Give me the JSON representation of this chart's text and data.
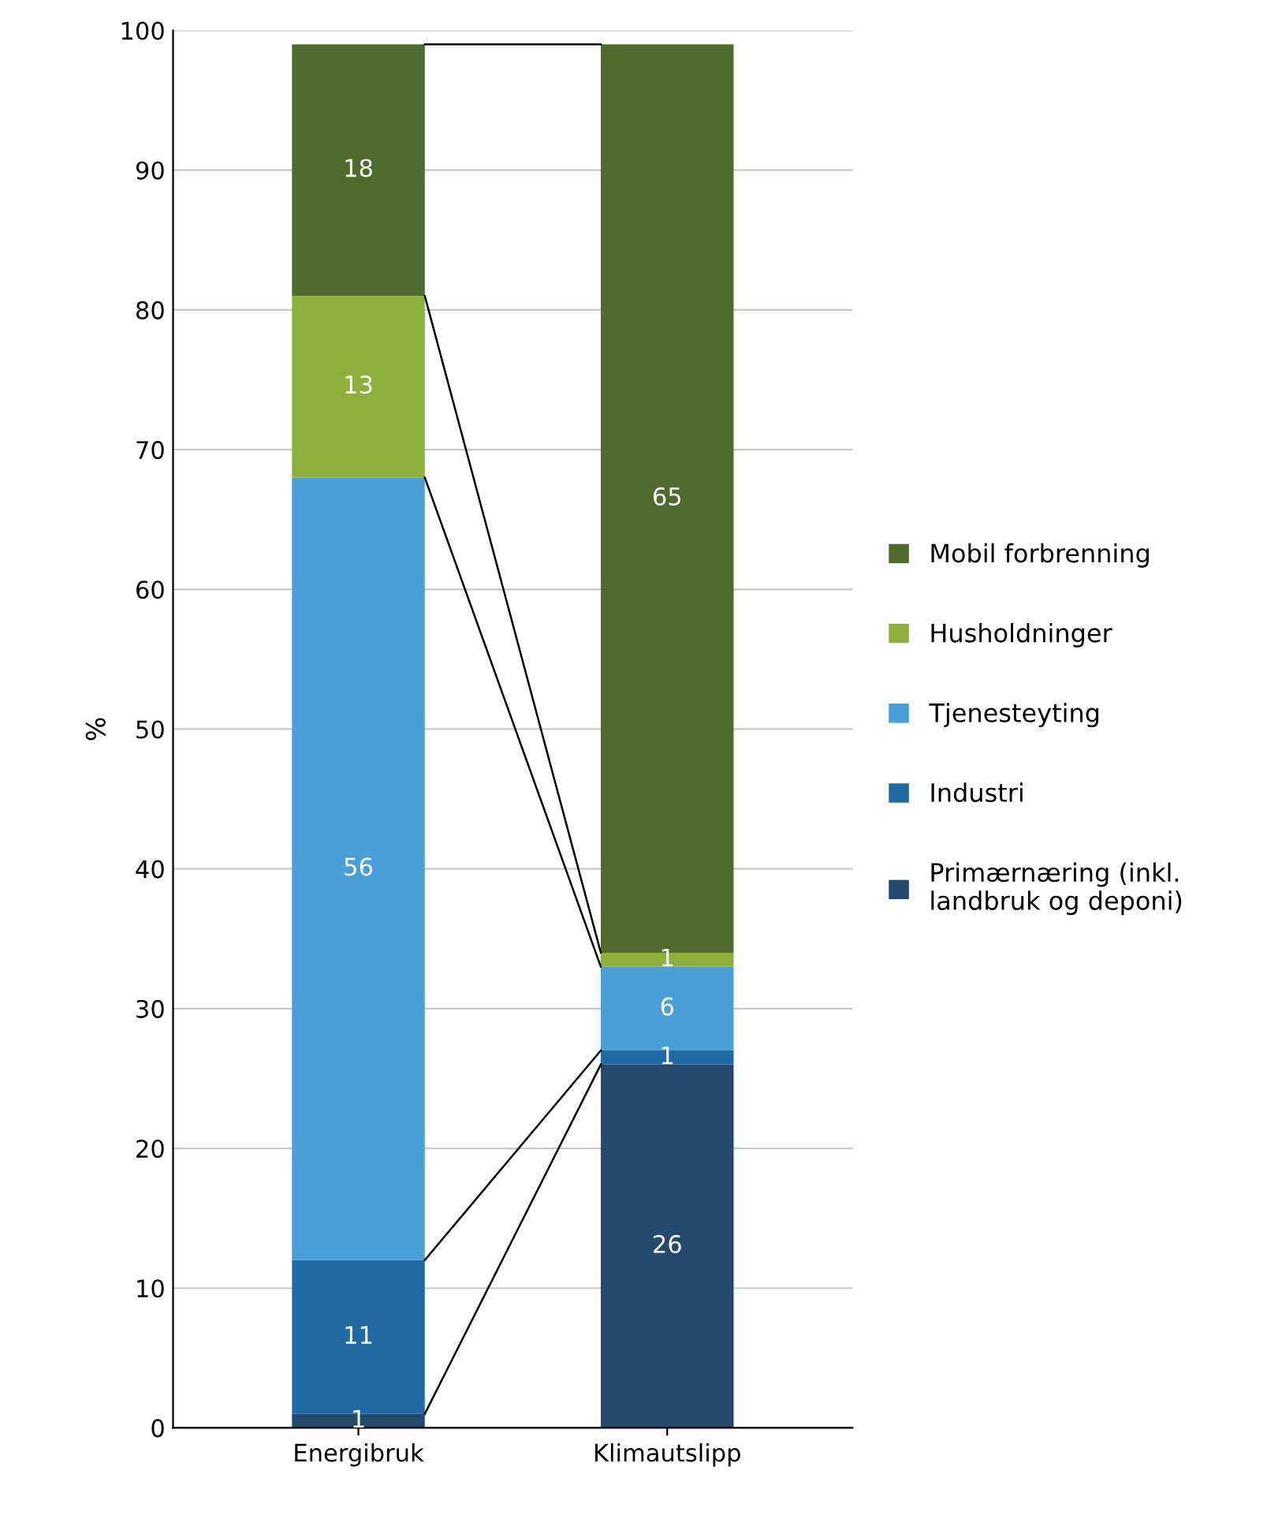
{
  "chart_data": {
    "type": "bar",
    "stacked": true,
    "ylabel": "%",
    "categories": [
      "Energibruk",
      "Klimautslipp"
    ],
    "series": [
      {
        "name": "Primærnæring (inkl.\nlandbruk og deponi)",
        "color": "#24486e",
        "values": [
          1,
          26
        ]
      },
      {
        "name": "Industri",
        "color": "#1f6aa5",
        "values": [
          11,
          1
        ]
      },
      {
        "name": "Tjenesteyting",
        "color": "#4a9fd8",
        "values": [
          56,
          6
        ]
      },
      {
        "name": "Husholdninger",
        "color": "#8db03c",
        "values": [
          13,
          1
        ]
      },
      {
        "name": "Mobil forbrenning",
        "color": "#4e6a2c",
        "values": [
          18,
          65
        ]
      }
    ],
    "ylim": [
      0,
      100
    ],
    "yticks": [
      0,
      10,
      20,
      30,
      40,
      50,
      60,
      70,
      80,
      90,
      100
    ],
    "grid": "y",
    "legend": "right",
    "data_labels": true
  }
}
